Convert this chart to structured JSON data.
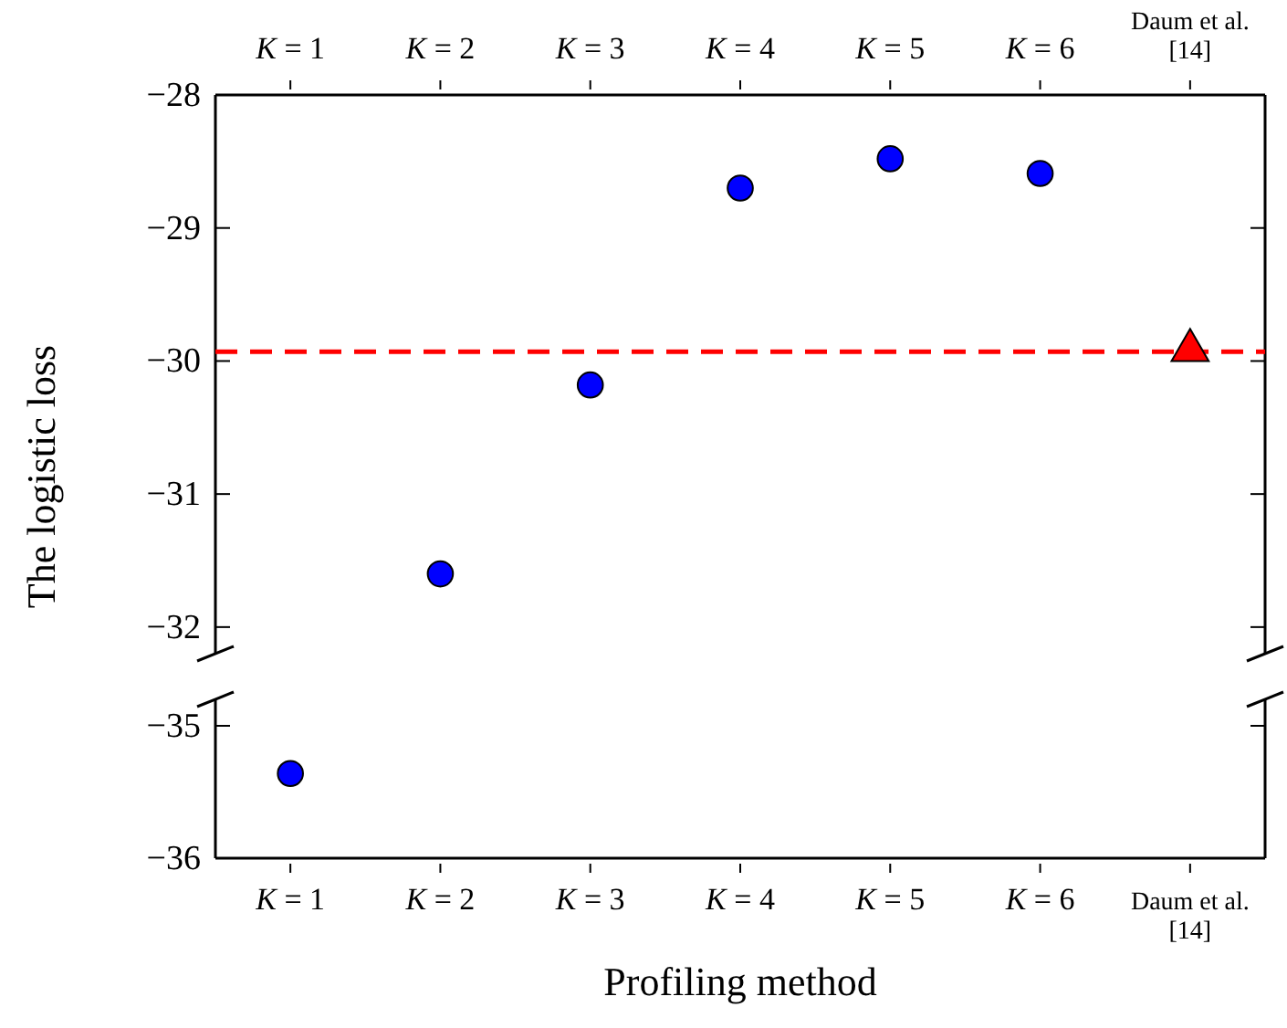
{
  "chart_data": [
    {
      "type": "scatter",
      "ylabel": "The logistic loss",
      "categories": [
        "K = 1",
        "K = 2",
        "K = 3",
        "K = 4",
        "K = 5",
        "K = 6",
        "Daum et al.\n[14]"
      ],
      "ylim": [
        -32.2,
        -28
      ],
      "yticks": [
        -32,
        -31,
        -30,
        -29,
        -28
      ],
      "series": [
        {
          "color": "#0000ff",
          "marker": "circle",
          "values": [
            null,
            -31.6,
            -30.18,
            -28.7,
            -28.48,
            -28.59,
            null
          ]
        },
        {
          "color": "#ff0000",
          "marker": "triangle",
          "values": [
            null,
            null,
            null,
            null,
            null,
            null,
            -29.92
          ]
        }
      ],
      "ref_lines": [
        {
          "axis": "y",
          "value": -29.93,
          "color": "#ff0000",
          "line_style": "dashed"
        }
      ]
    },
    {
      "type": "scatter",
      "xlabel": "Profiling method",
      "categories": [
        "K = 1",
        "K = 2",
        "K = 3",
        "K = 4",
        "K = 5",
        "K = 6",
        "Daum et al.\n[14]"
      ],
      "ylim": [
        -36,
        -34.8
      ],
      "yticks": [
        -36,
        -35
      ],
      "series": [
        {
          "color": "#0000ff",
          "marker": "circle",
          "values": [
            -35.36,
            null,
            null,
            null,
            null,
            null,
            null
          ]
        }
      ]
    }
  ]
}
